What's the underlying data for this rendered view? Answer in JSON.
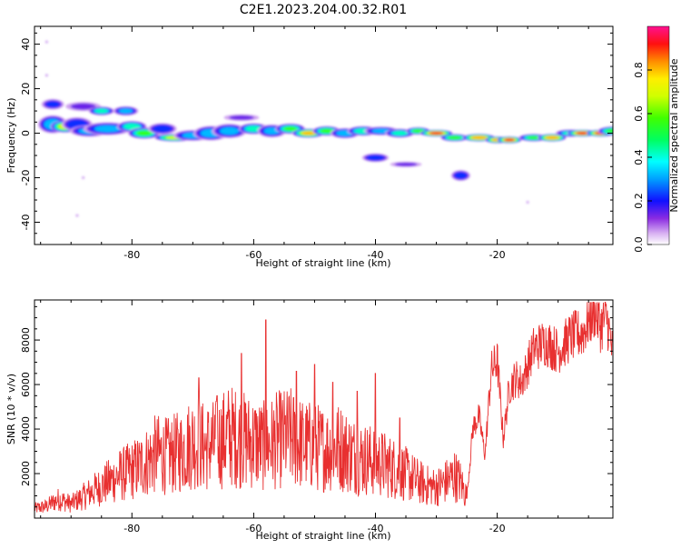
{
  "title": "C2E1.2023.204.00.32.R01",
  "chart_data": [
    {
      "type": "heatmap",
      "xlabel": "Height of straight line (km)",
      "ylabel": "Frequency (Hz)",
      "xlim": [
        -96,
        -1
      ],
      "ylim": [
        -50,
        48
      ],
      "xticks": [
        -80,
        -60,
        -40,
        -20
      ],
      "yticks": [
        -40,
        -20,
        0,
        20,
        40
      ],
      "colorbar": {
        "label": "Normalized spectral amplitude",
        "ticks": [
          0.0,
          0.2,
          0.4,
          0.6,
          0.8
        ],
        "range": [
          0,
          1
        ]
      },
      "blobs": [
        {
          "x": -93,
          "y": 13,
          "dx": 1.2,
          "dy": 1.5,
          "v": 0.25
        },
        {
          "x": -93,
          "y": 4,
          "dx": 1.5,
          "dy": 2.5,
          "v": 0.4
        },
        {
          "x": -91,
          "y": 3,
          "dx": 1.4,
          "dy": 1.6,
          "v": 0.75
        },
        {
          "x": -89,
          "y": 4,
          "dx": 1.6,
          "dy": 2.0,
          "v": 0.3
        },
        {
          "x": -88,
          "y": 12,
          "dx": 2.0,
          "dy": 1.4,
          "v": 0.15
        },
        {
          "x": -85,
          "y": 10,
          "dx": 1.3,
          "dy": 1.2,
          "v": 0.45
        },
        {
          "x": -81,
          "y": 10,
          "dx": 1.3,
          "dy": 1.3,
          "v": 0.35
        },
        {
          "x": -87,
          "y": 1,
          "dx": 2.0,
          "dy": 1.6,
          "v": 0.35
        },
        {
          "x": -84,
          "y": 2,
          "dx": 2.5,
          "dy": 1.8,
          "v": 0.35
        },
        {
          "x": -80,
          "y": 3,
          "dx": 1.5,
          "dy": 1.5,
          "v": 0.5
        },
        {
          "x": -78,
          "y": 0,
          "dx": 1.6,
          "dy": 1.5,
          "v": 0.6
        },
        {
          "x": -75,
          "y": 2,
          "dx": 1.5,
          "dy": 1.6,
          "v": 0.3
        },
        {
          "x": -73,
          "y": -2,
          "dx": 2.0,
          "dy": 1.0,
          "v": 0.7
        },
        {
          "x": -70,
          "y": -1,
          "dx": 2.0,
          "dy": 1.5,
          "v": 0.35
        },
        {
          "x": -67,
          "y": 0,
          "dx": 1.8,
          "dy": 2.0,
          "v": 0.4
        },
        {
          "x": -64,
          "y": 1,
          "dx": 1.8,
          "dy": 2.0,
          "v": 0.35
        },
        {
          "x": -62,
          "y": 7,
          "dx": 2.0,
          "dy": 1.0,
          "v": 0.15
        },
        {
          "x": -60,
          "y": 2,
          "dx": 1.5,
          "dy": 1.5,
          "v": 0.5
        },
        {
          "x": -57,
          "y": 1,
          "dx": 1.5,
          "dy": 1.8,
          "v": 0.35
        },
        {
          "x": -54,
          "y": 2,
          "dx": 1.5,
          "dy": 1.4,
          "v": 0.55
        },
        {
          "x": -51,
          "y": 0,
          "dx": 1.6,
          "dy": 1.2,
          "v": 0.8
        },
        {
          "x": -48,
          "y": 1,
          "dx": 1.4,
          "dy": 1.3,
          "v": 0.6
        },
        {
          "x": -45,
          "y": 0,
          "dx": 1.5,
          "dy": 1.4,
          "v": 0.4
        },
        {
          "x": -42,
          "y": 1,
          "dx": 1.6,
          "dy": 1.3,
          "v": 0.5
        },
        {
          "x": -39,
          "y": 1,
          "dx": 1.8,
          "dy": 1.2,
          "v": 0.35
        },
        {
          "x": -36,
          "y": 0,
          "dx": 1.5,
          "dy": 1.2,
          "v": 0.45
        },
        {
          "x": -33,
          "y": 1,
          "dx": 1.2,
          "dy": 1.0,
          "v": 0.6
        },
        {
          "x": -30,
          "y": 0,
          "dx": 1.6,
          "dy": 0.9,
          "v": 0.95
        },
        {
          "x": -27,
          "y": -2,
          "dx": 1.4,
          "dy": 1.0,
          "v": 0.6
        },
        {
          "x": -23,
          "y": -2,
          "dx": 1.6,
          "dy": 1.0,
          "v": 0.9
        },
        {
          "x": -20,
          "y": -3,
          "dx": 1.2,
          "dy": 0.9,
          "v": 0.85
        },
        {
          "x": -18,
          "y": -3,
          "dx": 1.2,
          "dy": 0.9,
          "v": 0.95
        },
        {
          "x": -14,
          "y": -2,
          "dx": 1.5,
          "dy": 1.0,
          "v": 0.55
        },
        {
          "x": -11,
          "y": -2,
          "dx": 1.4,
          "dy": 1.0,
          "v": 0.9
        },
        {
          "x": -8,
          "y": 0,
          "dx": 1.5,
          "dy": 1.0,
          "v": 0.45
        },
        {
          "x": -6,
          "y": 0,
          "dx": 1.5,
          "dy": 0.9,
          "v": 0.95
        },
        {
          "x": -3,
          "y": 0,
          "dx": 1.4,
          "dy": 0.9,
          "v": 0.95
        },
        {
          "x": -1,
          "y": 1,
          "dx": 1.5,
          "dy": 1.2,
          "v": 0.6
        },
        {
          "x": -40,
          "y": -11,
          "dx": 1.4,
          "dy": 1.2,
          "v": 0.3
        },
        {
          "x": -35,
          "y": -14,
          "dx": 1.8,
          "dy": 0.8,
          "v": 0.15
        },
        {
          "x": -26,
          "y": -19,
          "dx": 1.0,
          "dy": 1.5,
          "v": 0.3
        },
        {
          "x": -94,
          "y": 41,
          "dx": 0.4,
          "dy": 0.6,
          "v": 0.04
        },
        {
          "x": -94,
          "y": 26,
          "dx": 0.4,
          "dy": 0.6,
          "v": 0.04
        },
        {
          "x": -89,
          "y": -37,
          "dx": 0.4,
          "dy": 0.6,
          "v": 0.04
        },
        {
          "x": -88,
          "y": -20,
          "dx": 0.4,
          "dy": 0.6,
          "v": 0.05
        },
        {
          "x": -15,
          "y": -31,
          "dx": 0.4,
          "dy": 0.6,
          "v": 0.05
        }
      ]
    },
    {
      "type": "line",
      "xlabel": "Height of straight line (km)",
      "ylabel": "SNR (10 * v/v)",
      "xlim": [
        -96,
        -1
      ],
      "ylim": [
        0,
        9800
      ],
      "xticks": [
        -80,
        -60,
        -40,
        -20
      ],
      "yticks": [
        2000,
        4000,
        6000,
        8000
      ],
      "line_color": "#e83030",
      "series": [
        {
          "values_x": [
            -96,
            -94,
            -92,
            -90,
            -88,
            -86,
            -84,
            -82,
            -80,
            -78,
            -76,
            -74,
            -72,
            -70,
            -68,
            -66,
            -64,
            -62,
            -60,
            -58,
            -56,
            -54,
            -52,
            -50,
            -48,
            -46,
            -44,
            -42,
            -40,
            -38,
            -36,
            -34,
            -32,
            -30,
            -28,
            -27,
            -26,
            -25,
            -24,
            -23,
            -22,
            -21,
            -20,
            -19,
            -18,
            -17,
            -16,
            -14,
            -12,
            -10,
            -8,
            -6,
            -4,
            -3,
            -2,
            -1
          ],
          "values_y": [
            400,
            500,
            800,
            600,
            900,
            1200,
            1500,
            1800,
            2000,
            2300,
            2700,
            2600,
            2800,
            3200,
            3000,
            3100,
            3500,
            3300,
            3200,
            3000,
            3300,
            3400,
            3100,
            3000,
            2900,
            3000,
            2700,
            2500,
            2400,
            2200,
            2000,
            1700,
            1400,
            1300,
            1600,
            1800,
            1500,
            900,
            4000,
            4500,
            2800,
            6500,
            7000,
            3500,
            5800,
            6200,
            6000,
            7500,
            7800,
            7400,
            8000,
            8200,
            9200,
            8500,
            8900,
            7200
          ]
        }
      ],
      "spikes": [
        [
          -69,
          6300
        ],
        [
          -66,
          5500
        ],
        [
          -62,
          7400
        ],
        [
          -58,
          8900
        ],
        [
          -53,
          6600
        ],
        [
          -50,
          6900
        ],
        [
          -47,
          6100
        ],
        [
          -43,
          5700
        ],
        [
          -40,
          6500
        ],
        [
          -36,
          4500
        ]
      ]
    }
  ]
}
